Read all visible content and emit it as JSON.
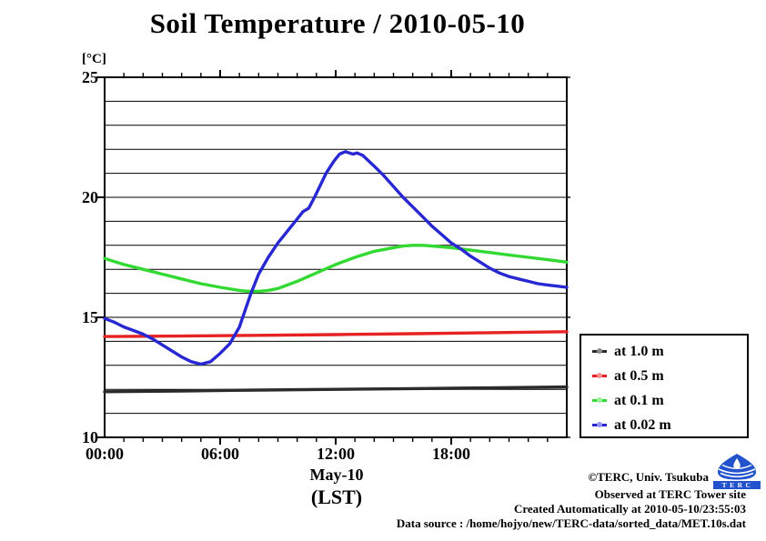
{
  "title": "Soil Temperature / 2010-05-10",
  "y_axis": {
    "unit_label": "[°C]",
    "tick_labels": [
      "25",
      "20",
      "15",
      "10"
    ]
  },
  "x_axis": {
    "tick_labels": [
      "00:00",
      "06:00",
      "12:00",
      "18:00"
    ],
    "date_label": "May-10",
    "tz_label": "(LST)"
  },
  "annotations": {
    "credit": "©TERC, Univ. Tsukuba",
    "observed": "Observed at TERC Tower site",
    "created": "Created Automatically at 2010-05-10/23:55:03",
    "source": "Data source : /home/hojyo/new/TERC-data/sorted_data/MET.10s.dat",
    "logo_text": "TERC",
    "logo_color": "#2253cd"
  },
  "chart_data": {
    "type": "line",
    "title": "Soil Temperature / 2010-05-10",
    "xlabel": "May-10 (LST)",
    "ylabel": "[°C]",
    "xlim": [
      0,
      24
    ],
    "ylim": [
      10,
      25
    ],
    "x_unit": "hours LST",
    "grid": "horizontal lines every 1 degC",
    "legend_position": "outside bottom right",
    "frame_color": "#000000",
    "series": [
      {
        "name": "at 1.0 m",
        "color": "#2b2b2b",
        "dot_color": "#8a8a8a",
        "x": [
          0,
          4,
          8,
          12,
          16,
          20,
          24
        ],
        "y": [
          11.9,
          11.93,
          11.97,
          12.0,
          12.03,
          12.06,
          12.1
        ]
      },
      {
        "name": "at 0.5 m",
        "color": "#e62222",
        "dot_color": "#f09090",
        "x": [
          0,
          4,
          8,
          12,
          16,
          20,
          24
        ],
        "y": [
          14.2,
          14.22,
          14.25,
          14.28,
          14.32,
          14.36,
          14.4
        ]
      },
      {
        "name": "at 0.1 m",
        "color": "#32d932",
        "dot_color": "#98ef98",
        "x": [
          0,
          1,
          2,
          3,
          4,
          5,
          6,
          7,
          7.5,
          8,
          8.5,
          9,
          10,
          11,
          12,
          13,
          14,
          15,
          15.5,
          16,
          16.5,
          17,
          18,
          19,
          20,
          21,
          22,
          23,
          24
        ],
        "y": [
          17.45,
          17.2,
          17.0,
          16.8,
          16.6,
          16.4,
          16.25,
          16.12,
          16.08,
          16.08,
          16.12,
          16.2,
          16.5,
          16.85,
          17.2,
          17.5,
          17.75,
          17.9,
          17.97,
          18.0,
          18.0,
          17.97,
          17.9,
          17.8,
          17.7,
          17.6,
          17.5,
          17.4,
          17.3
        ]
      },
      {
        "name": "at 0.02 m",
        "color": "#2828d2",
        "dot_color": "#9090ee",
        "x": [
          0,
          0.5,
          1,
          1.5,
          2,
          2.5,
          3,
          3.5,
          4,
          4.5,
          5,
          5.5,
          6,
          6.5,
          7,
          7.3,
          7.6,
          8,
          8.5,
          9,
          9.5,
          10,
          10.3,
          10.6,
          10.9,
          11.2,
          11.5,
          11.9,
          12.2,
          12.5,
          12.9,
          13.1,
          13.4,
          14,
          14.5,
          15,
          15.5,
          16,
          16.5,
          17,
          17.5,
          18,
          18.5,
          19,
          19.5,
          20,
          20.5,
          21,
          21.5,
          22,
          22.5,
          23,
          23.5,
          24
        ],
        "y": [
          14.95,
          14.8,
          14.6,
          14.45,
          14.3,
          14.1,
          13.85,
          13.6,
          13.35,
          13.15,
          13.05,
          13.15,
          13.5,
          13.9,
          14.6,
          15.3,
          16.0,
          16.8,
          17.5,
          18.1,
          18.6,
          19.1,
          19.4,
          19.55,
          20.0,
          20.5,
          21.0,
          21.5,
          21.8,
          21.9,
          21.8,
          21.85,
          21.75,
          21.3,
          20.9,
          20.45,
          20.0,
          19.6,
          19.2,
          18.8,
          18.45,
          18.1,
          17.85,
          17.55,
          17.3,
          17.05,
          16.85,
          16.7,
          16.6,
          16.5,
          16.4,
          16.35,
          16.3,
          16.25
        ]
      }
    ]
  }
}
